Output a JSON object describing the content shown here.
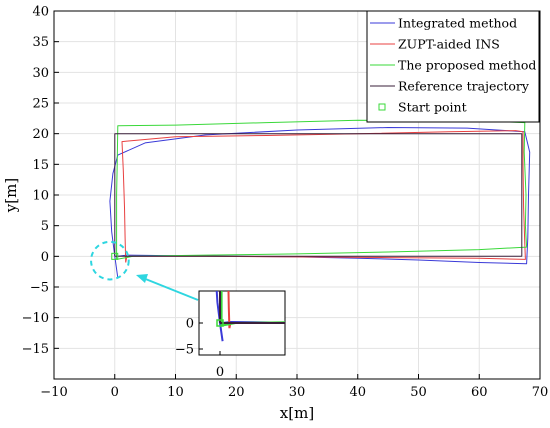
{
  "chart_data": {
    "type": "line",
    "xlabel": "x[m]",
    "ylabel": "y[m]",
    "xlim": [
      -10,
      70
    ],
    "ylim": [
      -20,
      40
    ],
    "xticks": [
      -10,
      0,
      10,
      20,
      30,
      40,
      50,
      60,
      70
    ],
    "yticks": [
      -15,
      -10,
      -5,
      0,
      5,
      10,
      15,
      20,
      25,
      30,
      35,
      40
    ],
    "ytick_labels": [
      "−15",
      "−10",
      "−5",
      "0",
      "5",
      "10",
      "15",
      "20",
      "25",
      "30",
      "35",
      "40"
    ],
    "xtick_labels": [
      "−10",
      "0",
      "10",
      "20",
      "30",
      "40",
      "50",
      "60",
      "70"
    ],
    "grid": true,
    "legend_position": "top-right",
    "series": [
      {
        "name": "Integrated method",
        "color": "#3a3ad8",
        "points": [
          [
            0.5,
            -3.5
          ],
          [
            0,
            0
          ],
          [
            -0.5,
            4
          ],
          [
            -0.8,
            9
          ],
          [
            -0.3,
            13.5
          ],
          [
            0.5,
            16.5
          ],
          [
            5,
            18.5
          ],
          [
            15,
            19.8
          ],
          [
            30,
            20.6
          ],
          [
            45,
            21
          ],
          [
            58,
            20.9
          ],
          [
            67.5,
            20.3
          ],
          [
            68.3,
            17
          ],
          [
            68.1,
            10
          ],
          [
            68,
            3
          ],
          [
            67.8,
            -1.2
          ],
          [
            60,
            -1
          ],
          [
            50,
            -0.6
          ],
          [
            40,
            -0.3
          ],
          [
            30,
            -0.1
          ],
          [
            20,
            0
          ],
          [
            10,
            0.1
          ],
          [
            2,
            0.2
          ],
          [
            0.5,
            0
          ]
        ]
      },
      {
        "name": "ZUPT-aided INS",
        "color": "#e84040",
        "points": [
          [
            1.8,
            -1
          ],
          [
            1.7,
            3
          ],
          [
            1.6,
            8
          ],
          [
            1.4,
            14
          ],
          [
            1.2,
            18.7
          ],
          [
            10,
            19.5
          ],
          [
            25,
            19.7
          ],
          [
            40,
            20
          ],
          [
            55,
            20.3
          ],
          [
            66,
            20.5
          ],
          [
            67.2,
            20.3
          ],
          [
            67.2,
            15
          ],
          [
            67.3,
            8
          ],
          [
            67.5,
            2
          ],
          [
            67.6,
            -0.5
          ],
          [
            60,
            -0.3
          ],
          [
            45,
            -0.2
          ],
          [
            30,
            -0.1
          ],
          [
            15,
            0
          ],
          [
            2,
            0
          ],
          [
            1.8,
            -1
          ]
        ]
      },
      {
        "name": "The proposed method",
        "color": "#3ad83a",
        "points": [
          [
            0.3,
            -0.5
          ],
          [
            0.3,
            5
          ],
          [
            0.3,
            10
          ],
          [
            0.4,
            15
          ],
          [
            0.5,
            21.3
          ],
          [
            10,
            21.4
          ],
          [
            25,
            21.8
          ],
          [
            40,
            22.2
          ],
          [
            55,
            22.1
          ],
          [
            65,
            21.9
          ],
          [
            67.5,
            21.8
          ],
          [
            67.4,
            17
          ],
          [
            67.7,
            10
          ],
          [
            67.6,
            5
          ],
          [
            67.8,
            1.5
          ],
          [
            60,
            1.1
          ],
          [
            45,
            0.7
          ],
          [
            30,
            0.4
          ],
          [
            15,
            0.2
          ],
          [
            3,
            0
          ],
          [
            0.3,
            -0.5
          ]
        ]
      },
      {
        "name": "Reference trajectory",
        "color": "#3a1f3a",
        "points": [
          [
            0,
            0
          ],
          [
            0,
            20
          ],
          [
            67,
            20
          ],
          [
            67,
            0
          ],
          [
            0,
            0
          ]
        ]
      },
      {
        "name": "Start point",
        "color": "#3ad83a",
        "marker": "square",
        "points": [
          [
            0,
            0
          ]
        ]
      }
    ],
    "annotation": {
      "circle_center": [
        -0.8,
        -0.7
      ],
      "circle_radius": 3.1,
      "circle_color": "#2ed6e0",
      "inset_xticks": [
        0
      ],
      "inset_yticks": [
        0,
        -5
      ],
      "inset_xtick_labels": [
        "0"
      ],
      "inset_ytick_labels": [
        "0",
        "−5"
      ]
    }
  }
}
